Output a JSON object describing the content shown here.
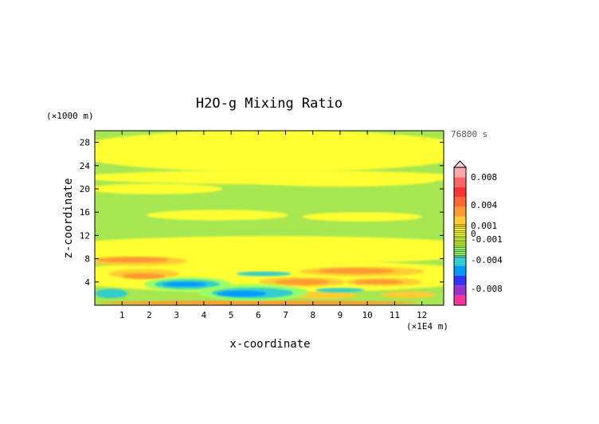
{
  "chart_data": {
    "type": "heatmap",
    "title": "H2O-g Mixing Ratio",
    "xlabel": "x-coordinate",
    "ylabel": "z-coordinate",
    "x_unit": "(×1E4 m)",
    "y_unit": "(×1000 m)",
    "time_label": "76800 s",
    "x_ticks": [
      "1",
      "2",
      "3",
      "4",
      "5",
      "6",
      "7",
      "8",
      "9",
      "10",
      "11",
      "12"
    ],
    "y_ticks": [
      "4",
      "8",
      "12",
      "16",
      "20",
      "24",
      "28"
    ],
    "xlim": [
      0,
      12.8
    ],
    "ylim": [
      0,
      30
    ],
    "grid": false,
    "colorbar": {
      "labels": [
        "0.008",
        "0.004",
        "0.001",
        "0",
        "-0.001",
        "-0.004",
        "-0.008"
      ],
      "colors": [
        "#ff3399",
        "#9933cc",
        "#3333ff",
        "#0099ff",
        "#33cccc",
        "#99ff66",
        "#ccff33",
        "#ffff33",
        "#ffcc33",
        "#ff9933",
        "#ff6633",
        "#ff3333",
        "#ff6666",
        "#ffaaaa"
      ]
    },
    "background_color": "#a6e650",
    "regions": [
      {
        "kind": "moist",
        "color": "#ffff33",
        "x": 6.5,
        "z": 26.5,
        "rx": 7.5,
        "rz": 3.6
      },
      {
        "kind": "moist",
        "color": "#ffff33",
        "x": 6.5,
        "z": 22.0,
        "rx": 7.0,
        "rz": 1.2
      },
      {
        "kind": "moist",
        "color": "#ffff33",
        "x": 2.2,
        "z": 20.0,
        "rx": 2.5,
        "rz": 0.9
      },
      {
        "kind": "moist",
        "color": "#ffff33",
        "x": 9.0,
        "z": 21.5,
        "rx": 3.5,
        "rz": 1.1
      },
      {
        "kind": "moist",
        "color": "#ffff33",
        "x": 4.5,
        "z": 15.5,
        "rx": 2.6,
        "rz": 0.9
      },
      {
        "kind": "moist",
        "color": "#ffff33",
        "x": 9.8,
        "z": 15.2,
        "rx": 2.2,
        "rz": 0.8
      },
      {
        "kind": "moist",
        "color": "#ffff33",
        "x": 6.5,
        "z": 9.5,
        "rx": 8.5,
        "rz": 2.4
      },
      {
        "kind": "moist",
        "color": "#ffff33",
        "x": 6.5,
        "z": 5.0,
        "rx": 8.0,
        "rz": 2.8
      },
      {
        "kind": "moist",
        "color": "#ffcc33",
        "x": 1.6,
        "z": 7.6,
        "rx": 1.8,
        "rz": 0.8
      },
      {
        "kind": "moist",
        "color": "#ff9933",
        "x": 1.4,
        "z": 7.8,
        "rx": 1.3,
        "rz": 0.5
      },
      {
        "kind": "moist",
        "color": "#ffcc33",
        "x": 1.8,
        "z": 5.4,
        "rx": 1.3,
        "rz": 0.8
      },
      {
        "kind": "moist",
        "color": "#ff9933",
        "x": 1.8,
        "z": 5.0,
        "rx": 0.8,
        "rz": 0.5
      },
      {
        "kind": "moist",
        "color": "#ffcc33",
        "x": 9.8,
        "z": 5.8,
        "rx": 2.3,
        "rz": 0.8
      },
      {
        "kind": "moist",
        "color": "#ff9933",
        "x": 9.6,
        "z": 5.9,
        "rx": 1.4,
        "rz": 0.5
      },
      {
        "kind": "moist",
        "color": "#ffcc33",
        "x": 7.6,
        "z": 4.0,
        "rx": 1.6,
        "rz": 0.8
      },
      {
        "kind": "moist",
        "color": "#ff9933",
        "x": 7.6,
        "z": 4.0,
        "rx": 1.0,
        "rz": 0.5
      },
      {
        "kind": "moist",
        "color": "#ffcc33",
        "x": 10.6,
        "z": 4.0,
        "rx": 1.4,
        "rz": 0.7
      },
      {
        "kind": "moist",
        "color": "#ff9933",
        "x": 10.4,
        "z": 4.0,
        "rx": 0.9,
        "rz": 0.4
      },
      {
        "kind": "moist",
        "color": "#ffcc33",
        "x": 8.4,
        "z": 1.7,
        "rx": 1.2,
        "rz": 0.6
      },
      {
        "kind": "moist",
        "color": "#ffcc33",
        "x": 11.5,
        "z": 1.8,
        "rx": 1.0,
        "rz": 0.6
      },
      {
        "kind": "moist",
        "color": "#ff9933",
        "x": 6.0,
        "z": 0.4,
        "rx": 5.8,
        "rz": 0.4
      },
      {
        "kind": "dry",
        "color": "#99ff66",
        "x": 3.4,
        "z": 3.6,
        "rx": 1.6,
        "rz": 1.2
      },
      {
        "kind": "dry",
        "color": "#33cccc",
        "x": 3.4,
        "z": 3.6,
        "rx": 1.2,
        "rz": 0.8
      },
      {
        "kind": "dry",
        "color": "#0099ff",
        "x": 3.3,
        "z": 3.6,
        "rx": 0.8,
        "rz": 0.4
      },
      {
        "kind": "dry",
        "color": "#99ff66",
        "x": 5.8,
        "z": 2.2,
        "rx": 2.0,
        "rz": 1.4
      },
      {
        "kind": "dry",
        "color": "#33cccc",
        "x": 5.8,
        "z": 2.1,
        "rx": 1.5,
        "rz": 0.9
      },
      {
        "kind": "dry",
        "color": "#0099ff",
        "x": 5.4,
        "z": 2.0,
        "rx": 0.9,
        "rz": 0.5
      },
      {
        "kind": "dry",
        "color": "#33cccc",
        "x": 0.6,
        "z": 2.0,
        "rx": 0.6,
        "rz": 0.8
      },
      {
        "kind": "dry",
        "color": "#33cccc",
        "x": 6.2,
        "z": 5.4,
        "rx": 1.0,
        "rz": 0.4
      },
      {
        "kind": "dry",
        "color": "#33cccc",
        "x": 9.0,
        "z": 2.6,
        "rx": 0.9,
        "rz": 0.4
      }
    ]
  }
}
